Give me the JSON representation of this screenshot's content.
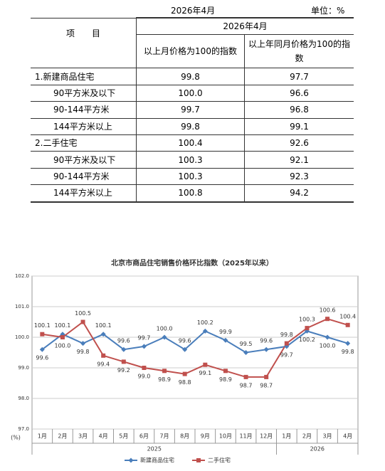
{
  "table": {
    "date": "2026年4月",
    "unit": "单位：%",
    "header": {
      "item": "项　　目",
      "period": "2026年4月",
      "col1": "以上月价格为100的指数",
      "col2": "以上年同月价格为100的指数"
    },
    "rows": [
      [
        "1.新建商品住宅",
        "99.8",
        "97.7"
      ],
      [
        "90平方米及以下",
        "100.0",
        "96.6"
      ],
      [
        "90-144平方米",
        "99.7",
        "96.8"
      ],
      [
        "144平方米以上",
        "99.8",
        "99.1"
      ],
      [
        "2.二手住宅",
        "100.4",
        "92.6"
      ],
      [
        "90平方米及以下",
        "100.3",
        "92.1"
      ],
      [
        "90-144平方米",
        "100.3",
        "92.3"
      ],
      [
        "144平方米以上",
        "100.8",
        "94.2"
      ]
    ]
  },
  "chart_data": {
    "type": "line",
    "title": "北京市商品住宅销售价格环比指数（2025年以来）",
    "y_label": "(%)",
    "categories": [
      "1月",
      "2月",
      "3月",
      "4月",
      "5月",
      "6月",
      "7月",
      "8月",
      "9月",
      "10月",
      "11月",
      "12月",
      "1月",
      "2月",
      "3月",
      "4月"
    ],
    "years": [
      "2025",
      "2026"
    ],
    "series": [
      {
        "name": "新建商品住宅",
        "color": "#4a7ebb",
        "marker": "diamond",
        "values": [
          99.6,
          100.1,
          99.8,
          100.1,
          99.6,
          99.7,
          100,
          99.6,
          100.2,
          99.9,
          99.5,
          99.6,
          99.7,
          100.2,
          100,
          99.8
        ],
        "value_labels": [
          "99.6",
          "100.1",
          "99.8",
          "100.1",
          "99.6",
          "99.7",
          "100.0",
          "99.6",
          "100.2",
          "99.9",
          "99.5",
          "99.6",
          "99.7",
          "100.2",
          "100.0",
          "99.8"
        ]
      },
      {
        "name": "二手住宅",
        "color": "#c0504d",
        "marker": "square",
        "values": [
          100.1,
          100,
          100.5,
          99.4,
          99.2,
          99,
          98.9,
          98.8,
          99.1,
          98.9,
          98.7,
          98.7,
          99.8,
          100.3,
          100.6,
          100.4
        ],
        "value_labels": [
          "100.1",
          "100.0",
          "100.5",
          "99.4",
          "99.2",
          "99.0",
          "98.9",
          "98.8",
          "99.1",
          "98.9",
          "98.7",
          "98.7",
          "99.8",
          "100.3",
          "100.6",
          "100.4"
        ]
      }
    ],
    "ylim": [
      97,
      102
    ],
    "yticks": [
      {
        "value": 97,
        "label": "97.0"
      },
      {
        "value": 98,
        "label": "98.0"
      },
      {
        "value": 99,
        "label": "99.0"
      },
      {
        "value": 100,
        "label": "100.0"
      },
      {
        "value": 101,
        "label": "101.0"
      },
      {
        "value": 102,
        "label": "102.0"
      }
    ],
    "grid": true
  }
}
